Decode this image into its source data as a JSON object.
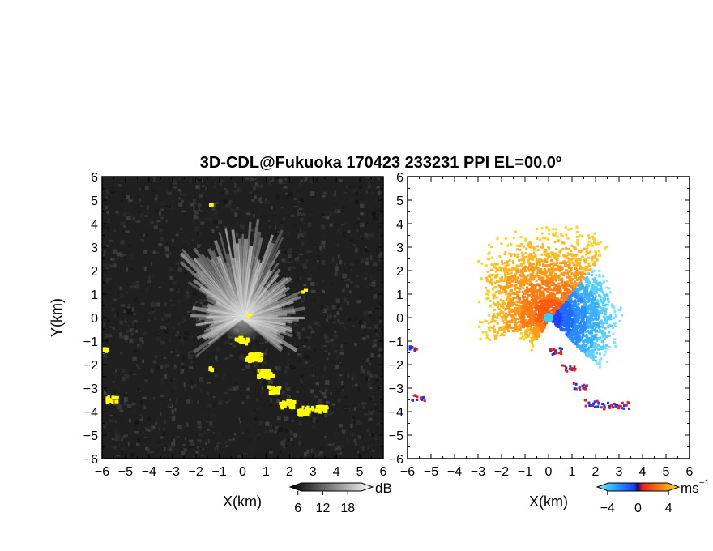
{
  "title": "3D-CDL@Fukuoka 170423 233231 PPI EL=00.0º",
  "colors": {
    "background": "#ffffff",
    "left_panel_bg": "#1f1f1f",
    "highlight": "#ffff00",
    "velocity_negative": "#1e5bff",
    "velocity_positive": "#f06a10"
  },
  "chart_data": [
    {
      "type": "heatmap",
      "name": "ppi-reflectivity",
      "xlabel": "X(km)",
      "ylabel": "Y(km)",
      "xlim": [
        -6,
        6
      ],
      "ylim": [
        -6,
        6
      ],
      "xticks": [
        -6,
        -5,
        -4,
        -3,
        -2,
        -1,
        0,
        1,
        2,
        3,
        4,
        5,
        6
      ],
      "yticks": [
        -6,
        -5,
        -4,
        -3,
        -2,
        -1,
        0,
        1,
        2,
        3,
        4,
        5,
        6
      ],
      "colorbar": {
        "unit": "dB",
        "ticks": [
          6,
          12,
          18
        ],
        "range": [
          0,
          24
        ]
      }
    },
    {
      "type": "heatmap",
      "name": "ppi-doppler-velocity",
      "xlabel": "X(km)",
      "ylabel": "",
      "xlim": [
        -6,
        6
      ],
      "ylim": [
        -6,
        6
      ],
      "xticks": [
        -6,
        -5,
        -4,
        -3,
        -2,
        -1,
        0,
        1,
        2,
        3,
        4,
        5,
        6
      ],
      "yticks": [
        -6,
        -5,
        -4,
        -3,
        -2,
        -1,
        0,
        1,
        2,
        3,
        4,
        5,
        6
      ],
      "colorbar": {
        "unit": "ms",
        "unit_exp": "−1",
        "ticks": [
          -4,
          0,
          4
        ],
        "range": [
          -6,
          6
        ]
      }
    }
  ]
}
